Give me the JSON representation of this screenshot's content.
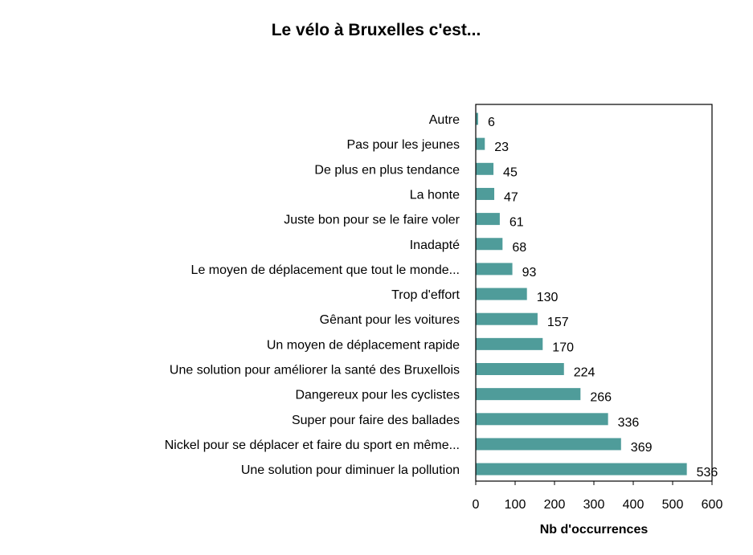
{
  "chart_data": {
    "type": "bar",
    "orientation": "horizontal",
    "title": "Le vélo à Bruxelles c'est...",
    "xlabel": "Nb d'occurrences",
    "ylabel": "",
    "xlim": [
      0,
      600
    ],
    "xticks": [
      "0",
      "100",
      "200",
      "300",
      "400",
      "500",
      "600"
    ],
    "grid": false,
    "bar_color": "#4f9c9a",
    "categories": [
      "Autre",
      "Pas pour les jeunes",
      "De plus en plus tendance",
      "La honte",
      "Juste bon pour se le faire voler",
      "Inadapté",
      "Le moyen de déplacement que tout le monde...",
      "Trop d'effort",
      "Gênant pour les voitures",
      "Un moyen de déplacement rapide",
      "Une solution pour améliorer la santé des Bruxellois",
      "Dangereux pour les cyclistes",
      "Super pour faire des ballades",
      "Nickel pour se déplacer et faire du sport en même...",
      "Une solution pour diminuer la pollution"
    ],
    "values": [
      6,
      23,
      45,
      47,
      61,
      68,
      93,
      130,
      157,
      170,
      224,
      266,
      336,
      369,
      536
    ]
  }
}
